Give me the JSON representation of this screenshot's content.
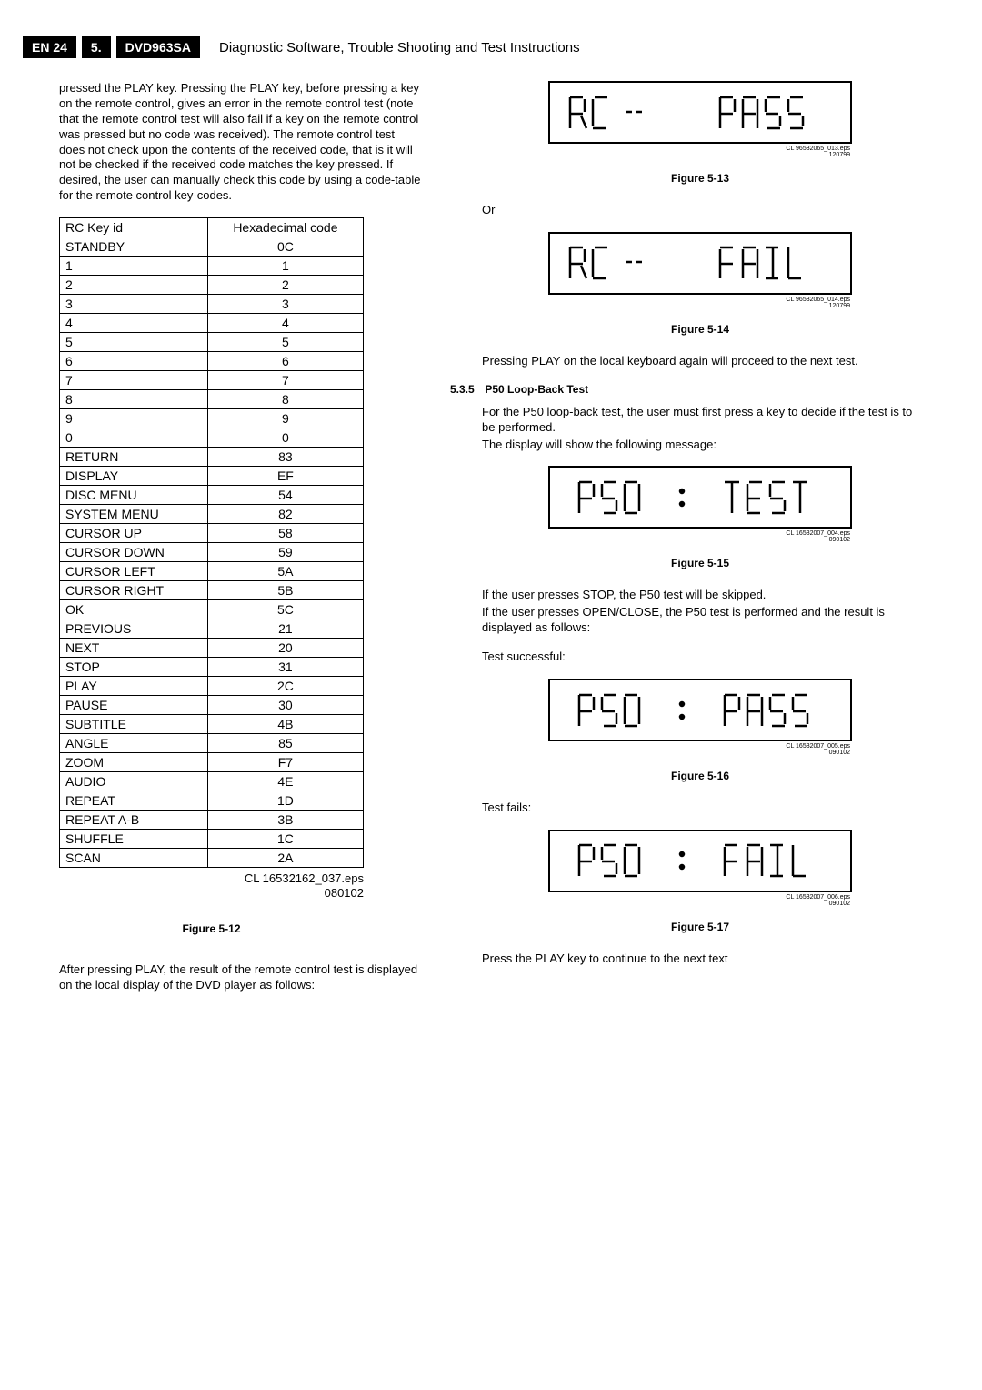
{
  "header": {
    "page_id": "EN 24",
    "chapter": "5.",
    "model": "DVD963SA",
    "title": "Diagnostic Software, Trouble Shooting and Test Instructions"
  },
  "left": {
    "intro_para": "pressed the PLAY key. Pressing the PLAY key, before pressing a key on the remote control, gives an error in the remote control test (note that the remote control test will also fail if a key on the remote control was pressed but no code was received). The remote control test does not check upon the contents of the received code, that is it will not be checked if the received code matches the key pressed. If desired, the user can manually check this code by using a code-table for the remote control key-codes.",
    "table": {
      "col1": "RC Key id",
      "col2": "Hexadecimal code",
      "rows": [
        {
          "k": "STANDBY",
          "v": "0C"
        },
        {
          "k": "1",
          "v": "1"
        },
        {
          "k": "2",
          "v": "2"
        },
        {
          "k": "3",
          "v": "3"
        },
        {
          "k": "4",
          "v": "4"
        },
        {
          "k": "5",
          "v": "5"
        },
        {
          "k": "6",
          "v": "6"
        },
        {
          "k": "7",
          "v": "7"
        },
        {
          "k": "8",
          "v": "8"
        },
        {
          "k": "9",
          "v": "9"
        },
        {
          "k": "0",
          "v": "0"
        },
        {
          "k": "RETURN",
          "v": "83"
        },
        {
          "k": "DISPLAY",
          "v": "EF"
        },
        {
          "k": "DISC MENU",
          "v": "54"
        },
        {
          "k": "SYSTEM  MENU",
          "v": "82"
        },
        {
          "k": "CURSOR UP",
          "v": "58"
        },
        {
          "k": "CURSOR DOWN",
          "v": "59"
        },
        {
          "k": "CURSOR LEFT",
          "v": "5A"
        },
        {
          "k": "CURSOR RIGHT",
          "v": "5B"
        },
        {
          "k": "OK",
          "v": "5C"
        },
        {
          "k": "PREVIOUS",
          "v": "21"
        },
        {
          "k": "NEXT",
          "v": "20"
        },
        {
          "k": "STOP",
          "v": "31"
        },
        {
          "k": "PLAY",
          "v": "2C"
        },
        {
          "k": "PAUSE",
          "v": "30"
        },
        {
          "k": "SUBTITLE",
          "v": "4B"
        },
        {
          "k": "ANGLE",
          "v": "85"
        },
        {
          "k": "ZOOM",
          "v": "F7"
        },
        {
          "k": "AUDIO",
          "v": "4E"
        },
        {
          "k": "REPEAT",
          "v": "1D"
        },
        {
          "k": "REPEAT A-B",
          "v": "3B"
        },
        {
          "k": "SHUFFLE",
          "v": "1C"
        },
        {
          "k": "SCAN",
          "v": "2A"
        }
      ]
    },
    "eps_line1": "CL 16532162_037.eps",
    "eps_line2": "080102",
    "fig12_label": "Figure 5-12",
    "para_after": "After pressing PLAY, the result of the remote control test is displayed on the local display of the DVD player as follows:"
  },
  "right": {
    "fig13_eps1": "CL 96532065_013.eps",
    "fig13_eps2": "120799",
    "fig13_label": "Figure 5-13",
    "or_text": "Or",
    "fig14_eps1": "CL 96532065_014.eps",
    "fig14_eps2": "120799",
    "fig14_label": "Figure 5-14",
    "para14": "Pressing PLAY on the local keyboard again will proceed to the next test.",
    "sect_num": "5.3.5",
    "sect_title": "P50 Loop-Back Test",
    "para535a": "For the P50 loop-back test, the user must first press a key to decide if the test is to be performed.",
    "para535b": "The display will show the following message:",
    "fig15_eps1": "CL 16532007_004.eps",
    "fig15_eps2": "090102",
    "fig15_label": "Figure 5-15",
    "para15a": "If the user presses STOP, the P50 test will be skipped.",
    "para15b": "If the user presses OPEN/CLOSE, the P50 test is performed and the result is displayed as follows:",
    "para15c": "Test successful:",
    "fig16_eps1": "CL 16532007_005.eps",
    "fig16_eps2": "090102",
    "fig16_label": "Figure 5-16",
    "para16": "Test fails:",
    "fig17_eps1": "CL 16532007_006.eps",
    "fig17_eps2": "090102",
    "fig17_label": "Figure 5-17",
    "para17": "Press the PLAY key to continue to the next text"
  }
}
